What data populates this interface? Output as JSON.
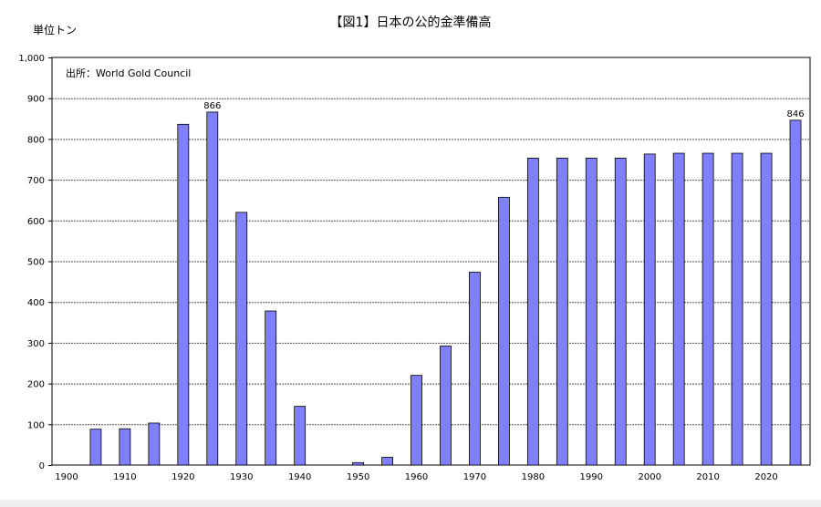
{
  "chart_data": {
    "type": "bar",
    "title": "【図1】日本の公的金準備高",
    "ylabel": "単位トン",
    "source": "出所：World Gold Council",
    "ylim": [
      0,
      1000
    ],
    "yticks": [
      0,
      100,
      200,
      300,
      400,
      500,
      600,
      700,
      800,
      900,
      1000
    ],
    "ytick_labels": [
      "0",
      "100",
      "200",
      "300",
      "400",
      "500",
      "600",
      "700",
      "800",
      "900",
      "1,000"
    ],
    "xlim": [
      1897.5,
      2027.5
    ],
    "xticks": [
      1900,
      1910,
      1920,
      1930,
      1940,
      1950,
      1960,
      1970,
      1980,
      1990,
      2000,
      2010,
      2020
    ],
    "grid": true,
    "bar_color": "#8080ff",
    "x": [
      1905,
      1910,
      1915,
      1920,
      1925,
      1930,
      1935,
      1940,
      1950,
      1955,
      1960,
      1965,
      1970,
      1975,
      1980,
      1985,
      1990,
      1995,
      2000,
      2005,
      2010,
      2015,
      2020,
      2025
    ],
    "values": [
      88,
      89,
      103,
      836,
      866,
      620,
      378,
      144,
      6,
      19,
      220,
      292,
      473,
      657,
      753,
      753,
      753,
      753,
      763,
      765,
      765,
      765,
      765,
      846
    ],
    "data_labels": [
      {
        "x": 1925,
        "text": "866"
      },
      {
        "x": 2025,
        "text": "846"
      }
    ]
  }
}
